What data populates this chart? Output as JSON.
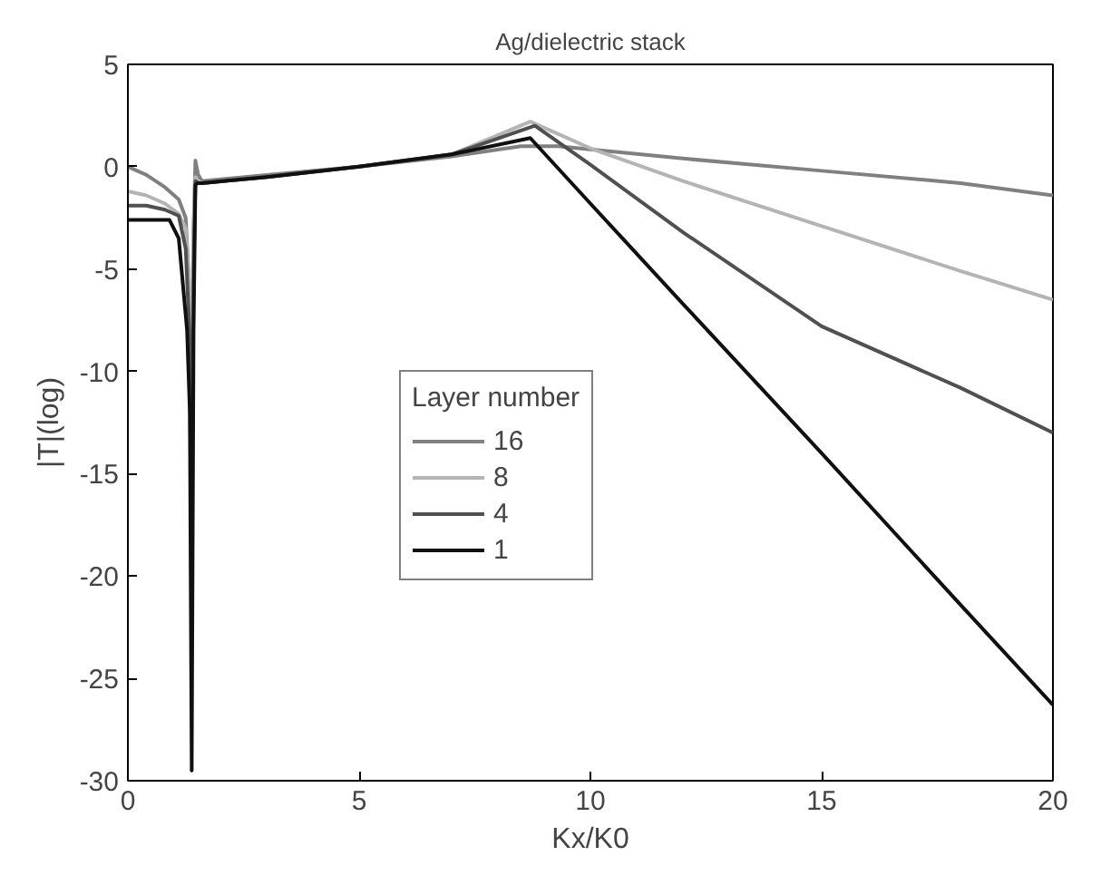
{
  "chart_data": {
    "type": "line",
    "title": "Ag/dielectric stack",
    "xlabel": "Kx/K0",
    "ylabel": "|T|(log)",
    "legend_title": "Layer number",
    "legend": "center",
    "grid": false,
    "line_style": "solid",
    "xlim": [
      0,
      20
    ],
    "ylim": [
      -30,
      5
    ],
    "xticks": [
      0,
      5,
      10,
      15,
      20
    ],
    "yticks": [
      -30,
      -25,
      -20,
      -15,
      -10,
      -5,
      0,
      5
    ],
    "series": [
      {
        "name": "16",
        "color": "#808080",
        "x": [
          0,
          0.4,
          0.8,
          1.1,
          1.25,
          1.33,
          1.38,
          1.42,
          1.46,
          1.52,
          1.6,
          3,
          5,
          7,
          8.5,
          9.3,
          12,
          15,
          18,
          20
        ],
        "values": [
          0,
          -0.4,
          -1,
          -1.6,
          -2.5,
          -6,
          -15,
          -3,
          0.3,
          -0.4,
          -0.7,
          -0.4,
          0,
          0.5,
          1,
          1.0,
          0.4,
          -0.2,
          -0.8,
          -1.4
        ]
      },
      {
        "name": "8",
        "color": "#b4b4b4",
        "x": [
          0,
          0.4,
          0.8,
          1.1,
          1.25,
          1.33,
          1.38,
          1.42,
          1.46,
          1.52,
          1.6,
          3,
          5,
          7,
          8.7,
          10,
          12,
          15,
          18,
          20
        ],
        "values": [
          -1.2,
          -1.4,
          -1.8,
          -2.3,
          -3,
          -6,
          -10,
          -3,
          -0.5,
          -0.7,
          -0.8,
          -0.5,
          0,
          0.6,
          2.2,
          0.9,
          -0.7,
          -2.9,
          -5.1,
          -6.5
        ]
      },
      {
        "name": "4",
        "color": "#505050",
        "x": [
          0,
          0.4,
          0.8,
          1.1,
          1.25,
          1.33,
          1.38,
          1.42,
          1.46,
          1.52,
          1.6,
          3,
          5,
          7,
          8.8,
          10,
          12,
          15,
          18,
          20
        ],
        "values": [
          -1.9,
          -1.9,
          -2.1,
          -2.4,
          -4,
          -8,
          -20,
          -5,
          -0.7,
          -0.8,
          -0.8,
          -0.5,
          0,
          0.6,
          2.0,
          0.1,
          -3.2,
          -7.8,
          -10.8,
          -13
        ]
      },
      {
        "name": "1",
        "color": "#101010",
        "x": [
          0,
          0.9,
          1.1,
          1.2,
          1.28,
          1.34,
          1.38,
          1.42,
          1.46,
          1.5,
          1.6,
          3,
          5,
          7,
          8.7,
          10,
          12,
          15,
          18,
          20
        ],
        "values": [
          -2.6,
          -2.6,
          -3.5,
          -6,
          -8,
          -12,
          -29.5,
          -8,
          -0.9,
          -0.8,
          -0.8,
          -0.5,
          0,
          0.6,
          1.4,
          -1.8,
          -6.7,
          -14,
          -21.4,
          -26.3
        ]
      }
    ]
  }
}
